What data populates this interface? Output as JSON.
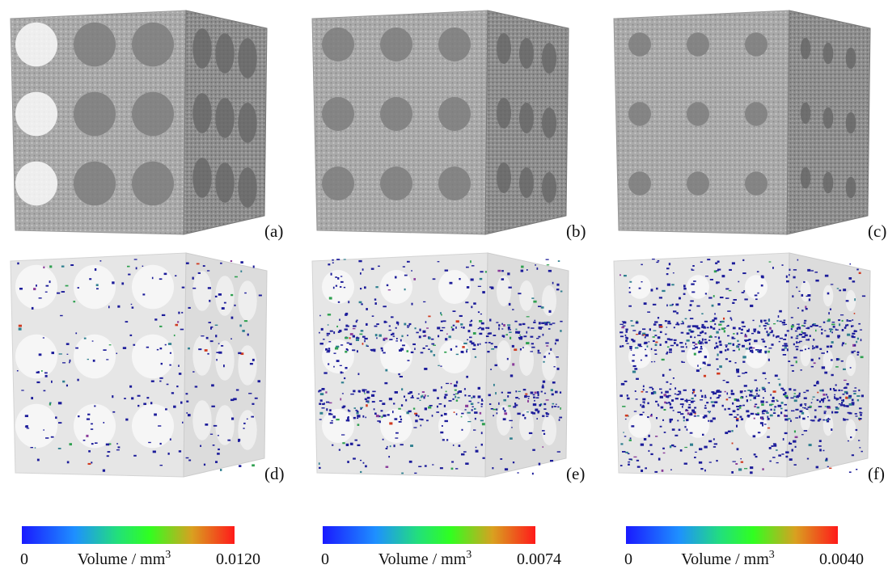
{
  "panels": [
    "(a)",
    "(b)",
    "(c)",
    "(d)",
    "(e)",
    "(f)"
  ],
  "colorbars": [
    {
      "min": "0",
      "label": "Volume / mm",
      "exponent": "3",
      "max": "0.0120"
    },
    {
      "min": "0",
      "label": "Volume / mm",
      "exponent": "3",
      "max": "0.0074"
    },
    {
      "min": "0",
      "label": "Volume / mm",
      "exponent": "3",
      "max": "0.0040"
    }
  ]
}
